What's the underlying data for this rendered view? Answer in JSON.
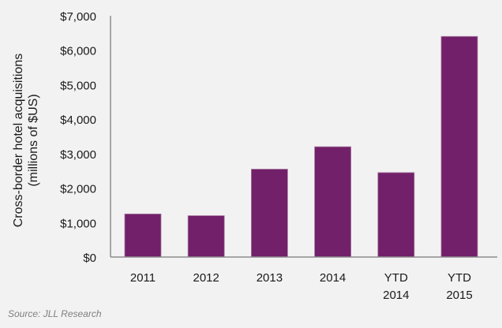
{
  "chart_data": {
    "type": "bar",
    "title": "",
    "xlabel": "",
    "ylabel": [
      "Cross-border hotel acquisitions",
      "(millions of $US)"
    ],
    "categories": [
      [
        "2011"
      ],
      [
        "2012"
      ],
      [
        "2013"
      ],
      [
        "2014"
      ],
      [
        "YTD",
        "2014"
      ],
      [
        "YTD",
        "2015"
      ]
    ],
    "values": [
      1250,
      1200,
      2550,
      3200,
      2450,
      6400
    ],
    "ylim": [
      0,
      7000
    ],
    "yticks": [
      0,
      1000,
      2000,
      3000,
      4000,
      5000,
      6000,
      7000
    ],
    "ytick_labels": [
      "$0",
      "$1,000",
      "$2,000",
      "$3,000",
      "$4,000",
      "$5,000",
      "$6,000",
      "$7,000"
    ],
    "grid": false,
    "legend": "none",
    "bar_color": "#722069",
    "source": "Source: JLL Research"
  }
}
